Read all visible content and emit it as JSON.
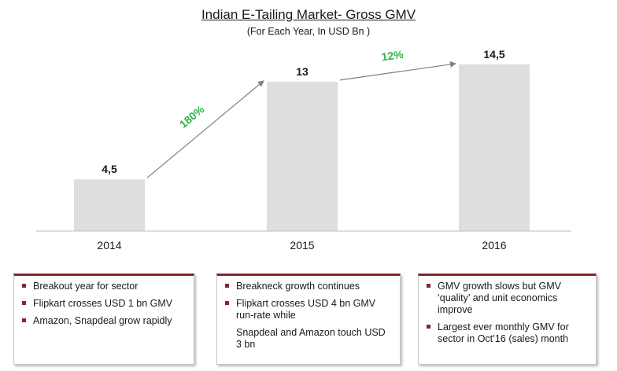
{
  "chart_data": {
    "type": "bar",
    "title": "Indian E-Tailing Market- Gross GMV",
    "subtitle": "(For Each Year, In USD Bn )",
    "categories": [
      "2014",
      "2015",
      "2016"
    ],
    "values": [
      4.5,
      13,
      14.5
    ],
    "value_labels": [
      "4,5",
      "13",
      "14,5"
    ],
    "growth_annotations": [
      {
        "from": "2014",
        "to": "2015",
        "label": "180%"
      },
      {
        "from": "2015",
        "to": "2016",
        "label": "12%"
      }
    ],
    "ylim": [
      0,
      16
    ],
    "colors": {
      "bar": "#dedede",
      "growth": "#2db34a",
      "arrow": "#7f7f7f",
      "accent": "#7b2a2f"
    }
  },
  "notes": [
    {
      "items": [
        {
          "text": "Breakout year for sector",
          "bullet": true
        },
        {
          "text": "Flipkart crosses USD 1 bn GMV",
          "bullet": true
        },
        {
          "text": "Amazon, Snapdeal grow rapidly",
          "bullet": true
        }
      ]
    },
    {
      "items": [
        {
          "text": "Breakneck growth continues",
          "bullet": true
        },
        {
          "text": "Flipkart crosses USD 4 bn GMV run-rate while",
          "bullet": true
        },
        {
          "text": "Snapdeal and Amazon touch USD 3 bn",
          "bullet": false
        }
      ]
    },
    {
      "items": [
        {
          "text": "GMV growth slows but GMV ‘quality’ and unit economics improve",
          "bullet": true
        },
        {
          "text": "Largest ever monthly GMV for sector in Oct’16 (sales) month",
          "bullet": true
        }
      ]
    }
  ]
}
